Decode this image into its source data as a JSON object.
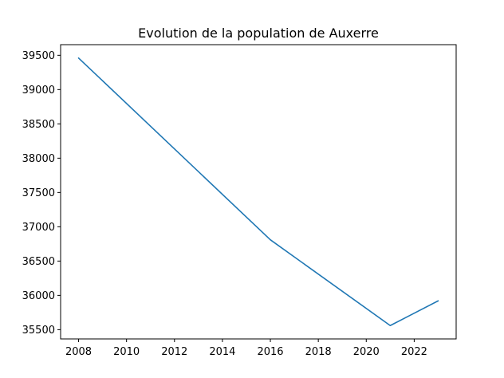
{
  "chart_data": {
    "type": "line",
    "title": "Evolution de la population de Auxerre",
    "xlabel": "",
    "ylabel": "",
    "x": [
      2008,
      2016,
      2021,
      2023
    ],
    "series": [
      {
        "values": [
          39460,
          36810,
          35560,
          35920
        ],
        "color": "#1f77b4"
      }
    ],
    "xlim": [
      2007.25,
      2023.75
    ],
    "ylim": [
      35365,
      39655
    ],
    "xticks": [
      2008,
      2010,
      2012,
      2014,
      2016,
      2018,
      2020,
      2022
    ],
    "yticks": [
      35500,
      36000,
      36500,
      37000,
      37500,
      38000,
      38500,
      39000,
      39500
    ],
    "xtick_labels": [
      "2008",
      "2010",
      "2012",
      "2014",
      "2016",
      "2018",
      "2020",
      "2022"
    ],
    "ytick_labels": [
      "35500",
      "36000",
      "36500",
      "37000",
      "37500",
      "38000",
      "38500",
      "39000",
      "39500"
    ],
    "grid": false,
    "legend": "none"
  }
}
